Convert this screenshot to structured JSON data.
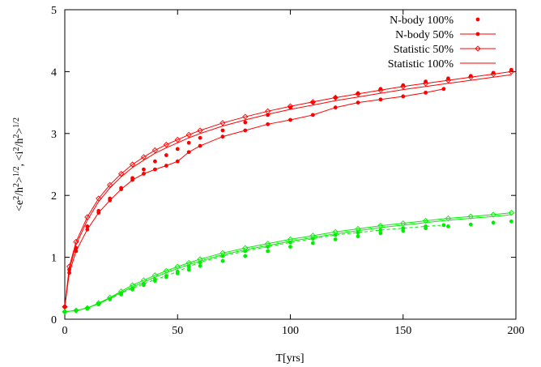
{
  "chart_data": {
    "type": "line",
    "xlabel": "T[yrs]",
    "ylabel": "<e²/h²>¹ᐟ², <i²/h²>¹ᐟ²",
    "ylabel_parts": [
      "<e",
      "2",
      "/h",
      "2",
      ">",
      "1/2",
      ", <i",
      "2",
      "/h",
      "2",
      ">",
      "1/2"
    ],
    "xlim": [
      0,
      200
    ],
    "ylim": [
      0,
      5
    ],
    "xticks": [
      "0",
      "50",
      "100",
      "150",
      "200"
    ],
    "yticks": [
      "0",
      "1",
      "2",
      "3",
      "4",
      "5"
    ],
    "grid": false,
    "legend_position": "top-right",
    "legend": [
      {
        "label": "N-body 100%",
        "style": "dots"
      },
      {
        "label": "N-body 50%",
        "style": "line-dots"
      },
      {
        "label": "Statistic 50%",
        "style": "line-diamonds"
      },
      {
        "label": "Statistic 100%",
        "style": "line"
      }
    ],
    "series": [
      {
        "name": "N-body 100%",
        "group": "e",
        "style": "dots",
        "color": "#ff0000",
        "x": [
          0,
          2,
          5,
          10,
          15,
          20,
          25,
          30,
          35,
          40,
          45,
          50,
          55,
          60,
          70,
          80,
          90,
          100,
          110,
          120,
          130,
          140,
          150,
          160,
          170,
          180,
          190,
          198
        ],
        "y": [
          0.2,
          0.8,
          1.15,
          1.5,
          1.75,
          1.95,
          2.12,
          2.28,
          2.42,
          2.55,
          2.65,
          2.75,
          2.85,
          2.93,
          3.05,
          3.18,
          3.3,
          3.42,
          3.5,
          3.58,
          3.65,
          3.72,
          3.78,
          3.84,
          3.89,
          3.93,
          3.98,
          4.03
        ]
      },
      {
        "name": "N-body 50%",
        "group": "e",
        "style": "line-dots",
        "color": "#ff0000",
        "x": [
          0,
          2,
          5,
          10,
          15,
          20,
          25,
          30,
          35,
          40,
          45,
          50,
          55,
          60,
          70,
          80,
          90,
          100,
          110,
          120,
          130,
          140,
          150,
          160,
          168
        ],
        "y": [
          0.2,
          0.75,
          1.1,
          1.45,
          1.72,
          1.92,
          2.1,
          2.25,
          2.35,
          2.42,
          2.48,
          2.55,
          2.7,
          2.8,
          2.95,
          3.05,
          3.15,
          3.22,
          3.3,
          3.42,
          3.5,
          3.55,
          3.6,
          3.66,
          3.72
        ]
      },
      {
        "name": "Statistic 50%",
        "group": "e",
        "style": "line-diamonds",
        "color": "#ff0000",
        "x": [
          0,
          2,
          5,
          10,
          15,
          20,
          25,
          30,
          35,
          40,
          45,
          50,
          55,
          60,
          70,
          80,
          90,
          100,
          110,
          120,
          130,
          140,
          150,
          160,
          170,
          180,
          190,
          198
        ],
        "y": [
          0.2,
          0.85,
          1.25,
          1.65,
          1.95,
          2.17,
          2.35,
          2.5,
          2.62,
          2.73,
          2.82,
          2.9,
          2.98,
          3.05,
          3.17,
          3.27,
          3.36,
          3.44,
          3.51,
          3.58,
          3.64,
          3.7,
          3.76,
          3.81,
          3.86,
          3.91,
          3.96,
          4.0
        ]
      },
      {
        "name": "Statistic 100%",
        "group": "e",
        "style": "line",
        "color": "#ff0000",
        "x": [
          0,
          2,
          5,
          10,
          15,
          20,
          25,
          30,
          35,
          40,
          45,
          50,
          55,
          60,
          70,
          80,
          90,
          100,
          110,
          120,
          130,
          140,
          150,
          160,
          170,
          180,
          190,
          198
        ],
        "y": [
          0.2,
          0.8,
          1.2,
          1.6,
          1.9,
          2.12,
          2.3,
          2.45,
          2.57,
          2.68,
          2.77,
          2.85,
          2.93,
          3.0,
          3.12,
          3.22,
          3.31,
          3.39,
          3.46,
          3.53,
          3.59,
          3.65,
          3.71,
          3.76,
          3.81,
          3.86,
          3.91,
          3.95
        ]
      },
      {
        "name": "N-body 100%",
        "group": "i",
        "style": "dots",
        "color": "#00ee00",
        "x": [
          0,
          5,
          10,
          15,
          20,
          25,
          30,
          35,
          40,
          45,
          50,
          55,
          60,
          70,
          80,
          90,
          100,
          110,
          120,
          130,
          140,
          150,
          160,
          170,
          180,
          190,
          198
        ],
        "y": [
          0.12,
          0.14,
          0.17,
          0.24,
          0.32,
          0.4,
          0.48,
          0.55,
          0.62,
          0.68,
          0.74,
          0.8,
          0.86,
          0.94,
          1.02,
          1.1,
          1.17,
          1.23,
          1.29,
          1.34,
          1.39,
          1.43,
          1.47,
          1.5,
          1.53,
          1.56,
          1.58
        ]
      },
      {
        "name": "N-body 50%",
        "group": "i",
        "style": "line-dots",
        "color": "#00ee00",
        "x": [
          0,
          5,
          10,
          15,
          20,
          25,
          30,
          35,
          40,
          45,
          50,
          55,
          60,
          70,
          80,
          90,
          100,
          110,
          120,
          130,
          140,
          150,
          160,
          168
        ],
        "y": [
          0.12,
          0.14,
          0.18,
          0.25,
          0.33,
          0.42,
          0.5,
          0.57,
          0.64,
          0.7,
          0.77,
          0.85,
          0.92,
          1.02,
          1.1,
          1.17,
          1.24,
          1.3,
          1.36,
          1.4,
          1.44,
          1.47,
          1.5,
          1.52
        ]
      },
      {
        "name": "Statistic 50%",
        "group": "i",
        "style": "line-diamonds",
        "color": "#00ee00",
        "x": [
          0,
          5,
          10,
          15,
          20,
          25,
          30,
          35,
          40,
          45,
          50,
          55,
          60,
          70,
          80,
          90,
          100,
          110,
          120,
          130,
          140,
          150,
          160,
          170,
          180,
          190,
          198
        ],
        "y": [
          0.12,
          0.14,
          0.18,
          0.26,
          0.35,
          0.45,
          0.55,
          0.63,
          0.71,
          0.78,
          0.85,
          0.91,
          0.97,
          1.07,
          1.15,
          1.22,
          1.29,
          1.35,
          1.41,
          1.46,
          1.51,
          1.55,
          1.59,
          1.63,
          1.66,
          1.69,
          1.72
        ]
      },
      {
        "name": "Statistic 100%",
        "group": "i",
        "style": "line",
        "color": "#00ee00",
        "x": [
          0,
          5,
          10,
          15,
          20,
          25,
          30,
          35,
          40,
          45,
          50,
          55,
          60,
          70,
          80,
          90,
          100,
          110,
          120,
          130,
          140,
          150,
          160,
          170,
          180,
          190,
          198
        ],
        "y": [
          0.12,
          0.14,
          0.18,
          0.25,
          0.34,
          0.43,
          0.52,
          0.6,
          0.68,
          0.75,
          0.82,
          0.88,
          0.94,
          1.04,
          1.12,
          1.19,
          1.26,
          1.32,
          1.38,
          1.43,
          1.48,
          1.52,
          1.56,
          1.6,
          1.63,
          1.66,
          1.69
        ]
      }
    ]
  }
}
